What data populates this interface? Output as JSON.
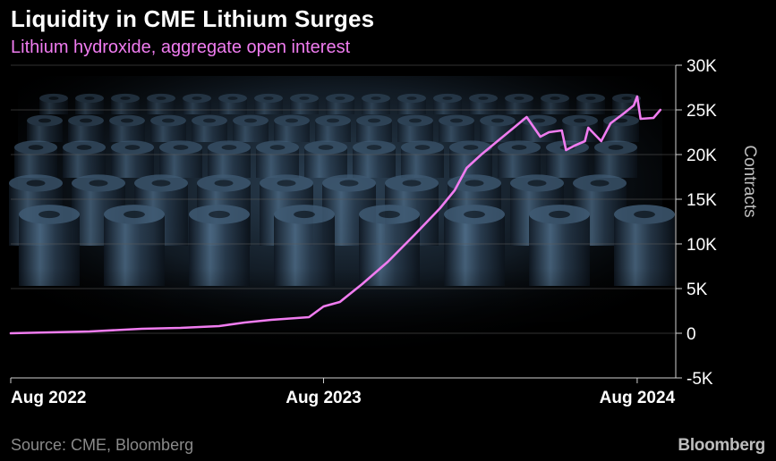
{
  "title": "Liquidity in CME Lithium Surges",
  "subtitle": "Lithium hydroxide, aggregate open interest",
  "source": "Source: CME, Bloomberg",
  "brand": "Bloomberg",
  "colors": {
    "background": "#000000",
    "line": "#f07cf0",
    "grid": "#5a5a5a",
    "title": "#ffffff",
    "subtitle": "#f07cf0",
    "muted": "#8a8a8a"
  },
  "background_image": "lithium-battery-cells-photo",
  "chart_data": {
    "type": "line",
    "title": "Liquidity in CME Lithium Surges",
    "subtitle": "Lithium hydroxide, aggregate open interest",
    "xlabel": "",
    "ylabel": "Contracts",
    "ylim": [
      -5000,
      30000
    ],
    "y_ticks": [
      30000,
      25000,
      20000,
      15000,
      10000,
      5000,
      0,
      -5000
    ],
    "y_tick_labels": [
      "30K",
      "25K",
      "20K",
      "15K",
      "10K",
      "5K",
      "0",
      "-5K"
    ],
    "x_range": [
      "2022-08-01",
      "2024-09-15"
    ],
    "x_ticks": [
      "2022-08-01",
      "2023-08-01",
      "2024-08-01"
    ],
    "x_tick_labels": [
      "Aug 2022",
      "Aug 2023",
      "Aug 2024"
    ],
    "grid": true,
    "series": [
      {
        "name": "Lithium hydroxide",
        "x": [
          "2022-08-01",
          "2022-11-01",
          "2023-01-01",
          "2023-02-15",
          "2023-04-01",
          "2023-05-01",
          "2023-06-01",
          "2023-07-15",
          "2023-08-01",
          "2023-08-20",
          "2023-09-15",
          "2023-10-15",
          "2023-11-15",
          "2023-12-15",
          "2024-01-01",
          "2024-01-15",
          "2024-02-01",
          "2024-02-20",
          "2024-03-10",
          "2024-03-25",
          "2024-04-10",
          "2024-04-20",
          "2024-05-05",
          "2024-05-10",
          "2024-05-20",
          "2024-06-01",
          "2024-06-05",
          "2024-06-20",
          "2024-07-01",
          "2024-07-15",
          "2024-07-28",
          "2024-08-01",
          "2024-08-05",
          "2024-08-20",
          "2024-08-28"
        ],
        "values": [
          0,
          200,
          500,
          600,
          800,
          1200,
          1500,
          1800,
          3000,
          3500,
          5500,
          8000,
          11000,
          14000,
          16000,
          18500,
          20000,
          21500,
          23000,
          24200,
          22000,
          22500,
          22700,
          20500,
          21000,
          21500,
          23000,
          21500,
          23500,
          24500,
          25500,
          26500,
          24000,
          24100,
          25000
        ]
      }
    ]
  }
}
